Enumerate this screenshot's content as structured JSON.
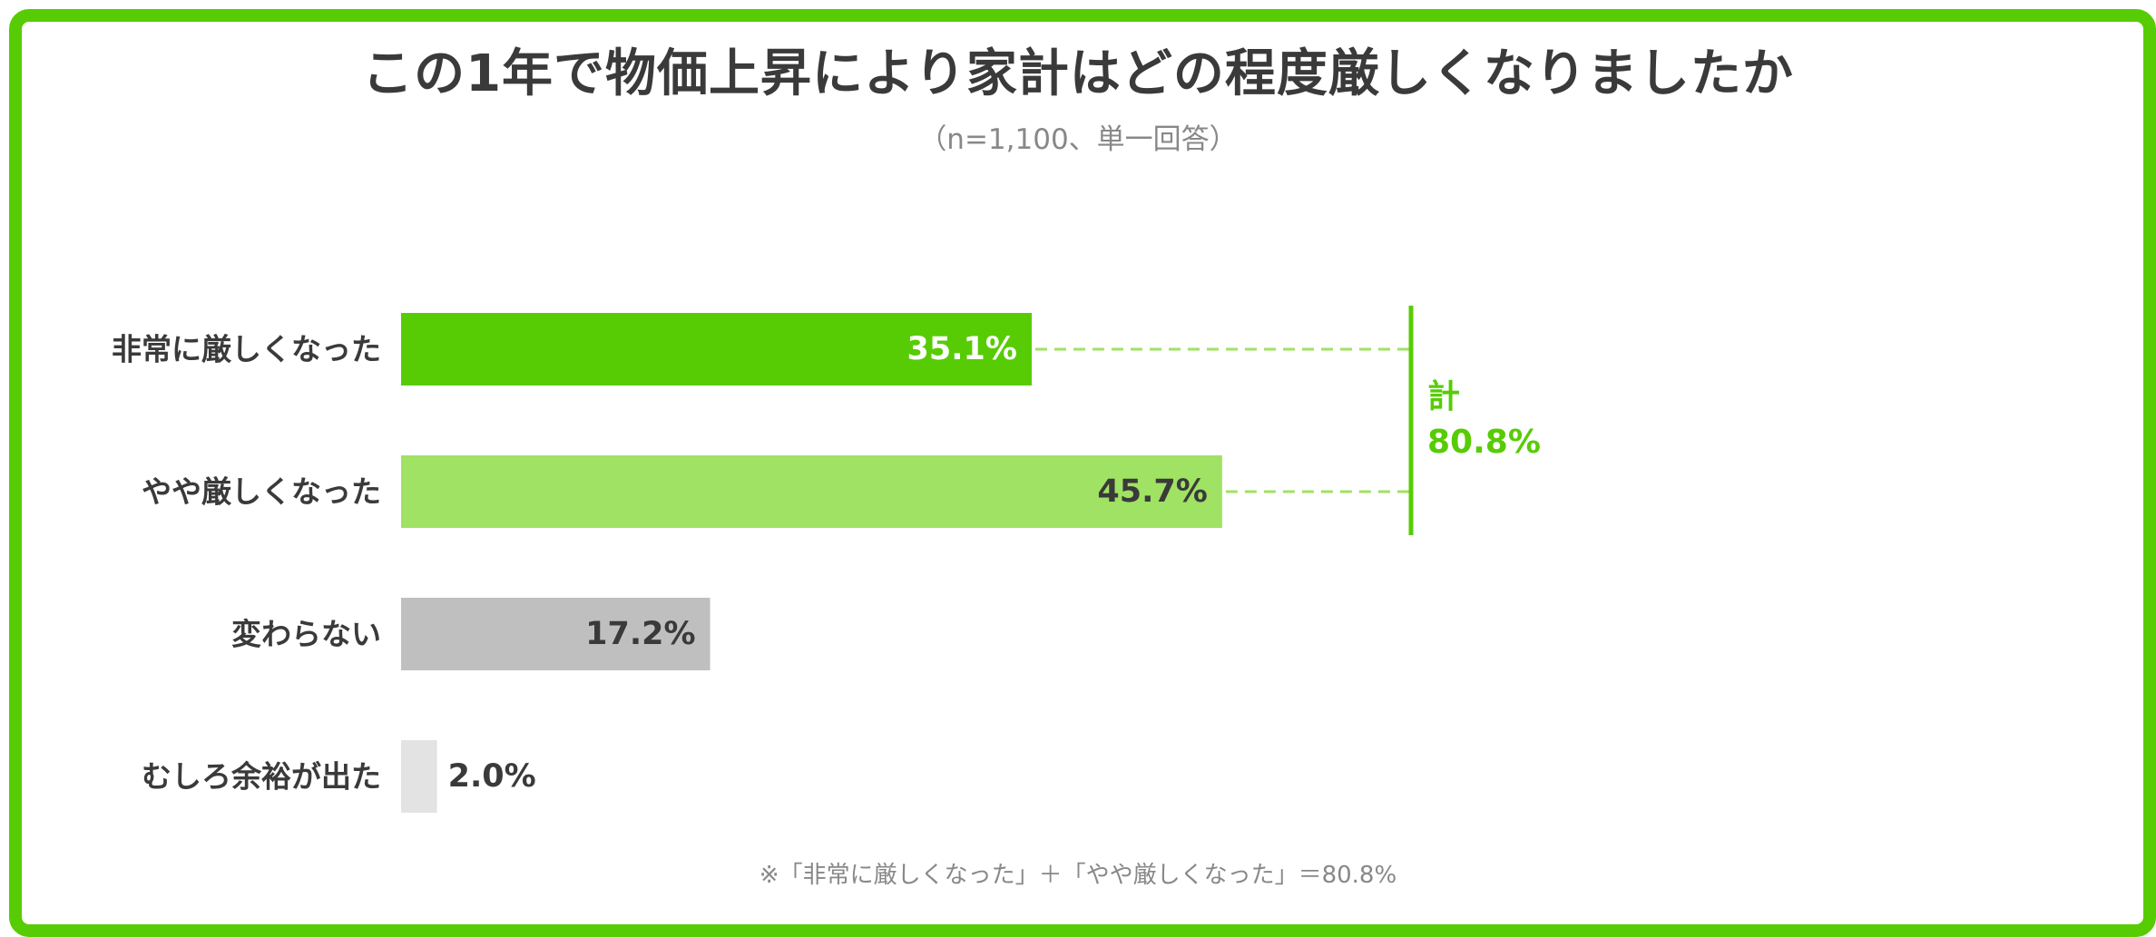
{
  "title": "この1年で物価上昇により家計はどの程度厳しくなりましたか",
  "subtitle": "（n=1,100、単一回答）",
  "footnote": "※「非常に厳しくなった」＋「やや厳しくなった」＝80.8%",
  "colors": {
    "frame": "#57cc04",
    "bar_1": "#57cc04",
    "bar_2": "#a0e263",
    "bar_3": "#bfbfbf",
    "bar_4": "#e3e3e3",
    "dash": "#a0e263",
    "total": "#57cc04",
    "label_white": "#ffffff",
    "label_dark": "#3a3a3a"
  },
  "chart_data": {
    "type": "bar",
    "orientation": "horizontal",
    "title": "この1年で物価上昇により家計はどの程度厳しくなりましたか",
    "subtitle": "（n=1,100、単一回答）",
    "categories": [
      "非常に厳しくなった",
      "やや厳しくなった",
      "変わらない",
      "むしろ余裕が出た"
    ],
    "values": [
      35.1,
      45.7,
      17.2,
      2.0
    ],
    "value_labels": [
      "35.1%",
      "45.7%",
      "17.2%",
      "2.0%"
    ],
    "unit": "%",
    "xlim": [
      0,
      100
    ],
    "grid": false,
    "legend": "none",
    "annotation": {
      "label": "計",
      "value": 80.8,
      "value_label": "80.8%",
      "applies_to": [
        "非常に厳しくなった",
        "やや厳しくなった"
      ]
    }
  }
}
